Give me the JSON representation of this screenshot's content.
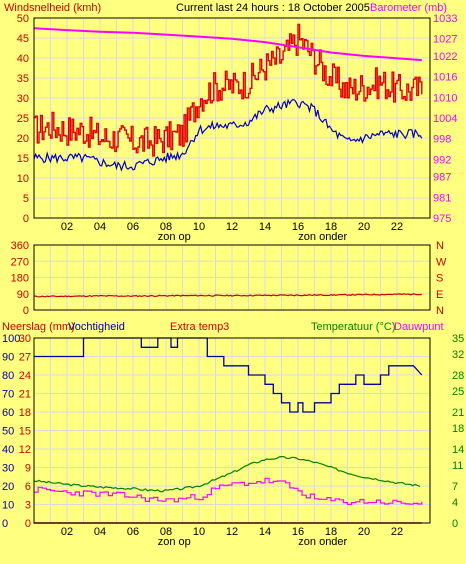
{
  "header": {
    "left_title": "Windsnelheid (kmh)",
    "center_title": "Current last 24 hours : 18 October 2005",
    "right_title": "Barometer (mb)"
  },
  "panel3_header": {
    "left1": "Neerslag (mm)",
    "left2": "Vochtigheid",
    "center": "Extra temp3",
    "right1": "Temperatuur (°C)",
    "right2": "Dauwpunt"
  },
  "colors": {
    "background": "#FFFF80",
    "grid": "#D8D8E8",
    "wind_gust": "#E00000",
    "wind_avg": "#0000C0",
    "barometer": "#FF00FF",
    "wind_dir": "#CC0000",
    "humidity": "#0000A0",
    "temperature": "#008000",
    "dewpoint": "#FF00FF",
    "rain": "#CC0000"
  },
  "chart_data": [
    {
      "type": "line",
      "x_ticks": [
        "02",
        "04",
        "06",
        "08",
        "10",
        "12",
        "14",
        "16",
        "18",
        "20",
        "22"
      ],
      "x_annotations": [
        {
          "text": "zon op",
          "x": 8.5
        },
        {
          "text": "zon onder",
          "x": 17.5
        }
      ],
      "y_left": {
        "ticks": [
          0,
          5,
          10,
          15,
          20,
          25,
          30,
          35,
          40,
          45,
          50
        ],
        "range": [
          0,
          50
        ]
      },
      "y_right": {
        "ticks": [
          975,
          981,
          987,
          992,
          998,
          1004,
          1010,
          1016,
          1022,
          1027,
          1033
        ],
        "range": [
          975,
          1033
        ]
      },
      "series": [
        {
          "key": "gust",
          "axis": "left",
          "x": [
            0,
            1,
            2,
            3,
            4,
            5,
            6,
            7,
            8,
            9,
            10,
            11,
            12,
            13,
            14,
            15,
            16,
            17,
            18,
            19,
            20,
            21,
            22,
            23.5
          ],
          "values": [
            22,
            23,
            22,
            22,
            20,
            20,
            19,
            19,
            20,
            21,
            30,
            33,
            33,
            34,
            38,
            40,
            45,
            40,
            35,
            32,
            33,
            34,
            32,
            32
          ]
        },
        {
          "key": "avg",
          "axis": "left",
          "x": [
            0,
            1,
            2,
            3,
            4,
            5,
            6,
            7,
            8,
            9,
            10,
            11,
            12,
            13,
            14,
            15,
            16,
            17,
            18,
            19,
            20,
            21,
            22,
            23.5
          ],
          "values": [
            15,
            15,
            15,
            15,
            14,
            13,
            13,
            14,
            15,
            16,
            22,
            23,
            23,
            24,
            27,
            28,
            29,
            27,
            22,
            19,
            20,
            21,
            21,
            21
          ]
        },
        {
          "key": "barometer",
          "axis": "right",
          "x": [
            0,
            2,
            4,
            6,
            8,
            10,
            12,
            14,
            16,
            18,
            20,
            22,
            23.5
          ],
          "values": [
            1030,
            1029.5,
            1029,
            1028.7,
            1028.2,
            1027.6,
            1027,
            1026,
            1024.5,
            1023,
            1022,
            1021.3,
            1020.8
          ]
        }
      ]
    },
    {
      "type": "line",
      "y_ticks_left": [
        0,
        90,
        180,
        270,
        360
      ],
      "y_ticks_right": [
        "N",
        "E",
        "S",
        "W",
        "N"
      ],
      "range": [
        0,
        360
      ],
      "series": [
        {
          "key": "wind_direction",
          "x": [
            0,
            2,
            4,
            6,
            8,
            10,
            12,
            14,
            16,
            18,
            20,
            22,
            23.5
          ],
          "values": [
            75,
            76,
            78,
            77,
            79,
            80,
            80,
            81,
            82,
            83,
            85,
            87,
            88
          ]
        }
      ]
    },
    {
      "type": "line",
      "x_ticks": [
        "02",
        "04",
        "06",
        "08",
        "10",
        "12",
        "14",
        "16",
        "18",
        "20",
        "22"
      ],
      "x_annotations": [
        {
          "text": "zon op",
          "x": 8.5
        },
        {
          "text": "zon onder",
          "x": 17.5
        }
      ],
      "y_left_humidity": {
        "ticks": [
          0,
          10,
          20,
          30,
          40,
          50,
          60,
          70,
          80,
          90,
          100
        ],
        "range": [
          0,
          100
        ]
      },
      "y_left_rain": {
        "ticks": [
          0,
          3,
          6,
          9,
          12,
          15,
          18,
          21,
          24,
          27,
          30
        ],
        "range": [
          0,
          30
        ]
      },
      "y_right_temp": {
        "ticks": [
          0,
          4,
          7,
          11,
          14,
          18,
          21,
          25,
          28,
          32,
          35
        ],
        "range": [
          0,
          35
        ]
      },
      "series": [
        {
          "key": "humidity",
          "axis": "humidity",
          "x": [
            0,
            3,
            3,
            6.5,
            6.5,
            7.5,
            7.5,
            8.3,
            8.3,
            8.7,
            8.7,
            10.5,
            10.5,
            11.5,
            11.5,
            13,
            13,
            14,
            14,
            14.5,
            14.5,
            15,
            15,
            15.5,
            15.5,
            16,
            16,
            16.3,
            16.3,
            17,
            17,
            17.5,
            17.5,
            18,
            18,
            18.5,
            18.5,
            19.5,
            19.5,
            20,
            20,
            21,
            21,
            21.5,
            21.5,
            23,
            23,
            23.5
          ],
          "values": [
            90,
            90,
            100,
            100,
            95,
            95,
            100,
            100,
            95,
            95,
            100,
            100,
            90,
            90,
            85,
            85,
            80,
            80,
            75,
            75,
            70,
            70,
            65,
            65,
            60,
            60,
            65,
            65,
            60,
            60,
            65,
            65,
            65,
            65,
            70,
            70,
            75,
            75,
            80,
            80,
            75,
            75,
            80,
            80,
            85,
            85,
            85,
            80
          ]
        },
        {
          "key": "temperature",
          "axis": "temp",
          "x": [
            0,
            2,
            4,
            6,
            7,
            8,
            9,
            10,
            11,
            12,
            13,
            14,
            15,
            16,
            17,
            18,
            19,
            20,
            21,
            22,
            23,
            23.5
          ],
          "values": [
            8,
            7.3,
            6.8,
            6.5,
            6.2,
            6.1,
            6.5,
            7,
            8.2,
            9.5,
            11,
            12,
            12.4,
            12.2,
            11.5,
            10.5,
            9.5,
            8.7,
            8.2,
            7.6,
            7.2,
            7
          ]
        },
        {
          "key": "dewpoint",
          "axis": "temp",
          "x": [
            0,
            2,
            4,
            6,
            7,
            8,
            9,
            10,
            11,
            12,
            13,
            14,
            15,
            16,
            17,
            18,
            19,
            20,
            21,
            22,
            23,
            23.5
          ],
          "values": [
            6.3,
            5.8,
            5.5,
            5,
            4.5,
            4.3,
            4.6,
            5,
            6.5,
            7.3,
            7.6,
            8,
            7.5,
            6,
            4.5,
            4.2,
            4,
            4.1,
            4,
            3.8,
            3.7,
            4
          ]
        },
        {
          "key": "rain",
          "axis": "rain",
          "x": [
            0,
            23.5
          ],
          "values": [
            0,
            0
          ]
        }
      ]
    }
  ]
}
